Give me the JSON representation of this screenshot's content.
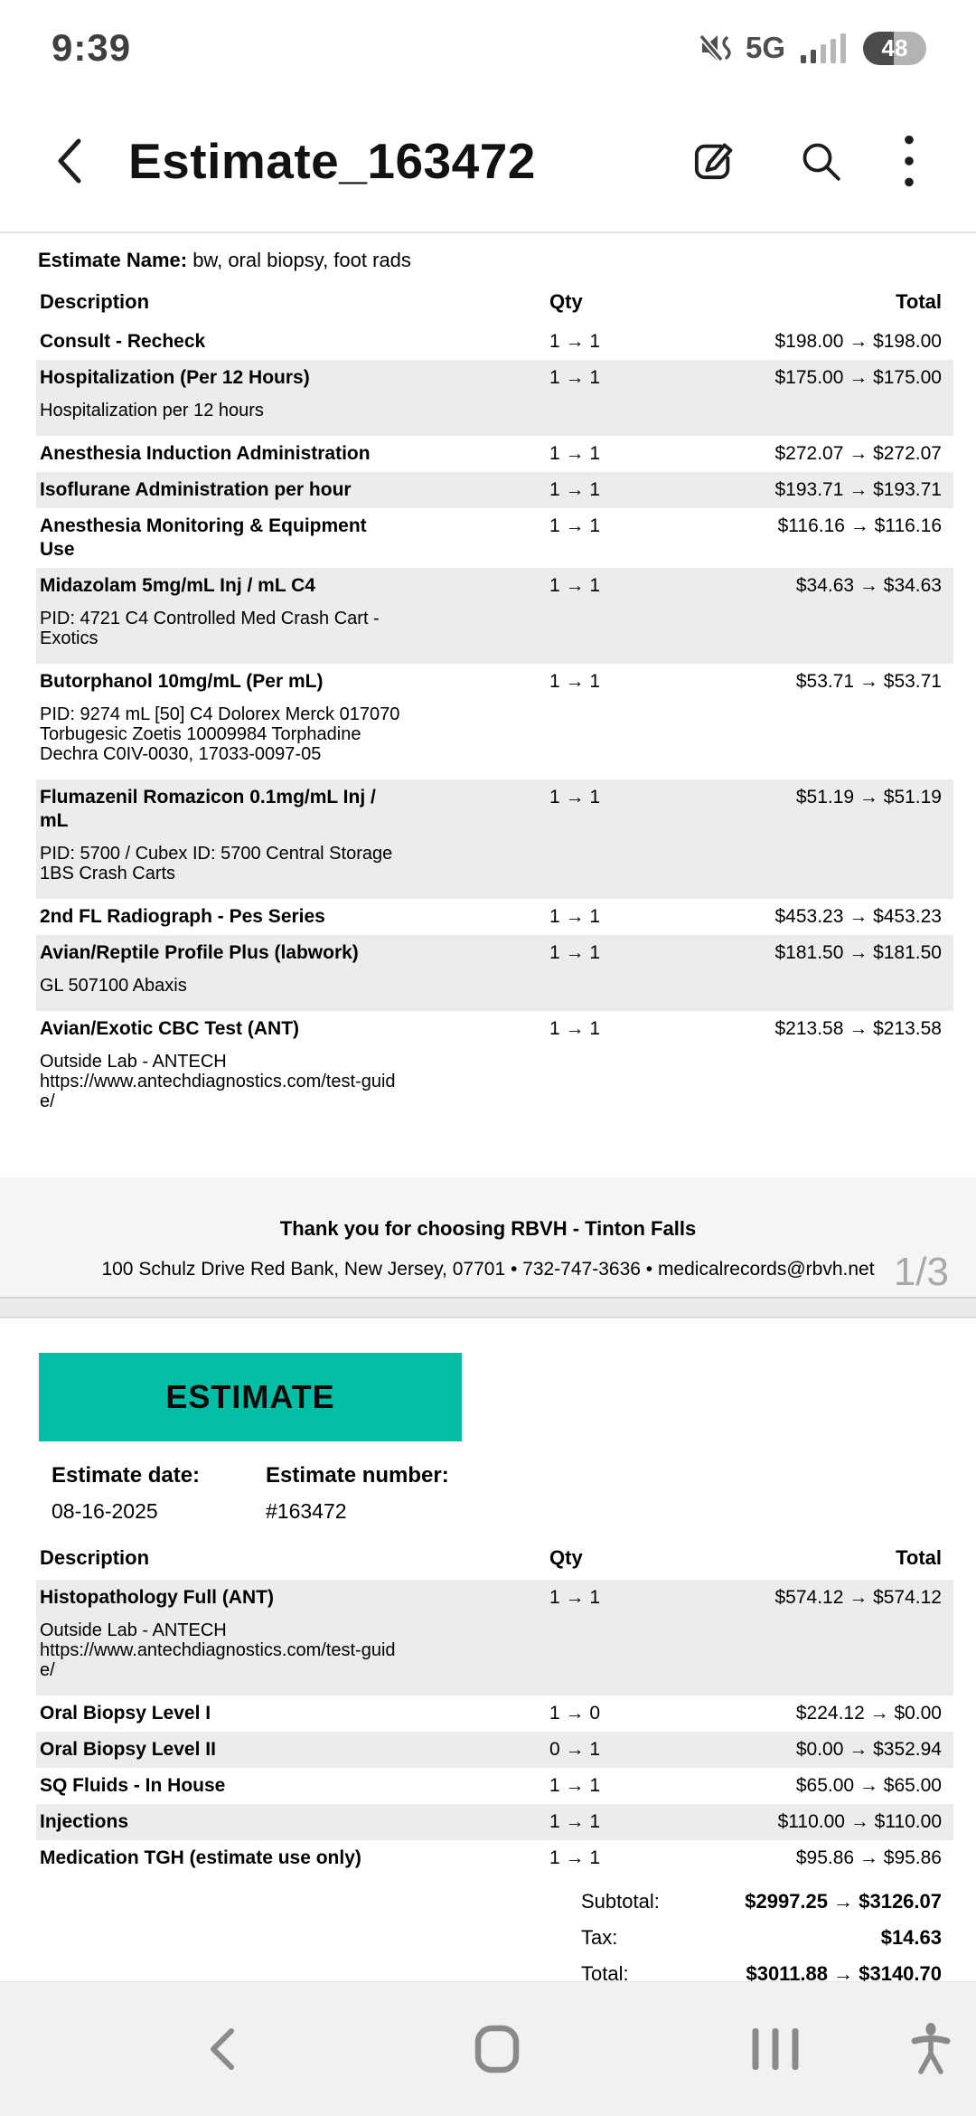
{
  "status_bar": {
    "time": "9:39",
    "network": "5G",
    "battery_percent": "48"
  },
  "header": {
    "title": "Estimate_163472"
  },
  "viewer": {
    "page_indicator": "1/3"
  },
  "colors": {
    "accent_teal": "#01BEA4",
    "row_shade": "#ECECEC",
    "footer_band": "#F5F5F5",
    "nav_bg": "#F1F1F1"
  },
  "page1": {
    "estimate_name_label": "Estimate Name:",
    "estimate_name_value": " bw, oral biopsy, foot rads",
    "columns": {
      "description": "Description",
      "qty": "Qty",
      "total": "Total"
    },
    "rows": [
      {
        "description": "Consult - Recheck",
        "qty": "1 → 1",
        "total": "$198.00 → $198.00",
        "shaded": false,
        "sub": []
      },
      {
        "description": "Hospitalization (Per 12 Hours)",
        "qty": "1 → 1",
        "total": "$175.00 → $175.00",
        "shaded": true,
        "sub": [
          "Hospitalization per 12 hours"
        ]
      },
      {
        "description": "Anesthesia Induction Administration",
        "qty": "1 → 1",
        "total": "$272.07 → $272.07",
        "shaded": false,
        "sub": []
      },
      {
        "description": "Isoflurane Administration per hour",
        "qty": "1 → 1",
        "total": "$193.71 → $193.71",
        "shaded": true,
        "sub": []
      },
      {
        "description": "Anesthesia Monitoring & Equipment\nUse",
        "qty": "1 → 1",
        "total": "$116.16 → $116.16",
        "shaded": false,
        "sub": []
      },
      {
        "description": "Midazolam 5mg/mL Inj / mL C4",
        "qty": "1 → 1",
        "total": "$34.63 → $34.63",
        "shaded": true,
        "sub": [
          "PID: 4721 C4 Controlled Med Crash Cart -",
          "Exotics"
        ]
      },
      {
        "description": "Butorphanol 10mg/mL (Per mL)",
        "qty": "1 → 1",
        "total": "$53.71 → $53.71",
        "shaded": false,
        "sub": [
          "PID: 9274 mL [50] C4 Dolorex Merck 017070",
          "Torbugesic Zoetis 10009984 Torphadine",
          "Dechra C0IV-0030, 17033-0097-05"
        ]
      },
      {
        "description": "Flumazenil Romazicon 0.1mg/mL Inj /\nmL",
        "qty": "1 → 1",
        "total": "$51.19 → $51.19",
        "shaded": true,
        "sub": [
          "PID: 5700 / Cubex ID: 5700 Central Storage",
          "1BS Crash Carts"
        ]
      },
      {
        "description": "2nd FL Radiograph - Pes Series",
        "qty": "1 → 1",
        "total": "$453.23 → $453.23",
        "shaded": false,
        "sub": []
      },
      {
        "description": "Avian/Reptile Profile Plus (labwork)",
        "qty": "1 → 1",
        "total": "$181.50 → $181.50",
        "shaded": true,
        "sub": [
          "GL 507100 Abaxis"
        ]
      },
      {
        "description": "Avian/Exotic CBC Test (ANT)",
        "qty": "1 → 1",
        "total": "$213.58 → $213.58",
        "shaded": false,
        "sub": [
          "Outside Lab - ANTECH",
          "https://www.antechdiagnostics.com/test-guid",
          "e/"
        ]
      }
    ],
    "footer": {
      "thank_you": "Thank you for choosing RBVH - Tinton Falls",
      "address": "100 Schulz Drive Red Bank, New Jersey, 07701 • 732-747-3636 • medicalrecords@rbvh.net"
    }
  },
  "page2": {
    "banner": "ESTIMATE",
    "date_label": "Estimate date:",
    "date_value": "08-16-2025",
    "number_label": "Estimate number:",
    "number_value": "#163472",
    "columns": {
      "description": "Description",
      "qty": "Qty",
      "total": "Total"
    },
    "rows": [
      {
        "description": "Histopathology Full (ANT)",
        "qty": "1 → 1",
        "total": "$574.12 → $574.12",
        "shaded": true,
        "sub": [
          "Outside Lab - ANTECH",
          "https://www.antechdiagnostics.com/test-guid",
          "e/"
        ]
      },
      {
        "description": "Oral Biopsy Level I",
        "qty": "1 → 0",
        "total": "$224.12 → $0.00",
        "shaded": false,
        "sub": []
      },
      {
        "description": "Oral Biopsy Level II",
        "qty": "0 → 1",
        "total": "$0.00 → $352.94",
        "shaded": true,
        "sub": []
      },
      {
        "description": "SQ Fluids - In House",
        "qty": "1 → 1",
        "total": "$65.00 → $65.00",
        "shaded": false,
        "sub": []
      },
      {
        "description": "Injections",
        "qty": "1 → 1",
        "total": "$110.00 → $110.00",
        "shaded": true,
        "sub": []
      },
      {
        "description": "Medication TGH (estimate use only)",
        "qty": "1 → 1",
        "total": "$95.86 → $95.86",
        "shaded": false,
        "sub": []
      }
    ],
    "summary": [
      {
        "label": "Subtotal:",
        "value": "$2997.25 → $3126.07"
      },
      {
        "label": "Tax:",
        "value": "$14.63"
      },
      {
        "label": "Total:",
        "value": "$3011.88 → $3140.70"
      }
    ]
  }
}
